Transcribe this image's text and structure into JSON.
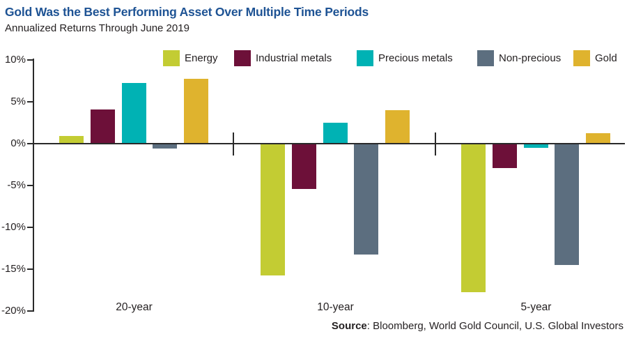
{
  "header": {
    "title": "Gold Was the Best Performing Asset Over Multiple Time Periods",
    "subtitle": "Annualized Returns Through June 2019"
  },
  "footer": {
    "source_label": "Source",
    "source_text": ": Bloomberg, World Gold Council, U.S. Global Investors"
  },
  "colors": {
    "title_blue": "#1e5394",
    "axis_dark": "#231f20"
  },
  "chart_data": {
    "type": "bar",
    "title": "Gold Was the Best Performing Asset Over Multiple Time Periods",
    "subtitle": "Annualized Returns Through June 2019",
    "categories": [
      "20-year",
      "10-year",
      "5-year"
    ],
    "series": [
      {
        "name": "Energy",
        "color": "#c3cc33",
        "values": [
          0.8,
          -15.7,
          -17.7
        ]
      },
      {
        "name": "Industrial metals",
        "color": "#6d1039",
        "values": [
          4.0,
          -5.3,
          -2.8
        ]
      },
      {
        "name": "Precious metals",
        "color": "#00b2b4",
        "values": [
          7.2,
          2.4,
          -0.4
        ]
      },
      {
        "name": "Non-precious",
        "color": "#5c6e7f",
        "values": [
          -0.5,
          -13.2,
          -14.4
        ]
      },
      {
        "name": "Gold",
        "color": "#dfb32e",
        "values": [
          7.7,
          3.9,
          1.2
        ]
      }
    ],
    "xlabel": "",
    "ylabel": "",
    "ylim": [
      -20,
      10
    ],
    "yticks": [
      10,
      5,
      0,
      -5,
      -10,
      -15,
      -20
    ],
    "ytick_format": "percent",
    "grid": false,
    "legend_position": "top"
  }
}
